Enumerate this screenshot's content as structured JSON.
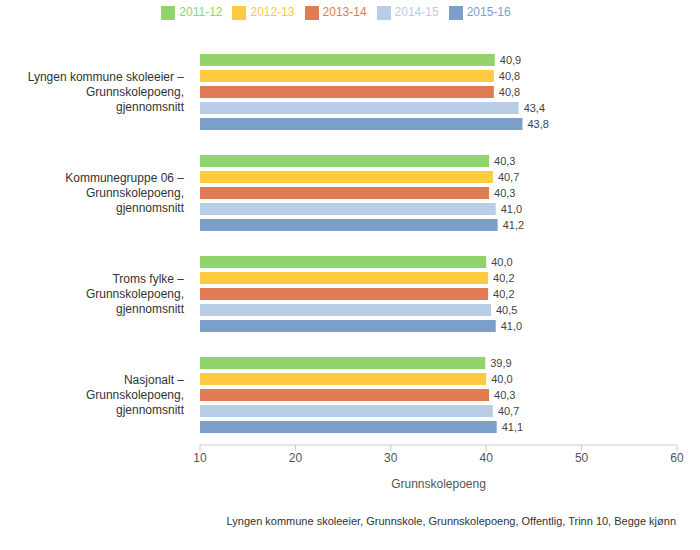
{
  "chart_data": {
    "type": "bar",
    "orientation": "horizontal",
    "data_labels": true,
    "legend": "top",
    "grid": false,
    "x_label": "Grunnskolepoeng",
    "annotations": [
      "Lyngen kommune skoleeier, Grunnskole, Grunnskolepoeng, Offentlig, Trinn 10, Begge kjønn"
    ],
    "categories": [
      "Lyngen kommune skoleeier – Grunnskolepoeng, gjennomsnitt",
      "Kommunegruppe 06 – Grunnskolepoeng, gjennomsnitt",
      "Troms fylke – Grunnskolepoeng, gjennomsnitt",
      "Nasjonalt – Grunnskolepoeng, gjennomsnitt"
    ],
    "xlim": [
      10,
      60
    ],
    "xticks": [
      10,
      20,
      30,
      40,
      50,
      60
    ],
    "series": [
      {
        "name": "2011-12",
        "color": "#92d36e",
        "values": [
          40.9,
          40.3,
          40.0,
          39.9
        ],
        "value_labels": [
          "40,9",
          "40,3",
          "40,0",
          "39,9"
        ]
      },
      {
        "name": "2012-13",
        "color": "#fdca40",
        "values": [
          40.8,
          40.7,
          40.2,
          40.0
        ],
        "value_labels": [
          "40,8",
          "40,7",
          "40,2",
          "40,0"
        ]
      },
      {
        "name": "2013-14",
        "color": "#e07b53",
        "values": [
          40.8,
          40.3,
          40.2,
          40.3
        ],
        "value_labels": [
          "40,8",
          "40,3",
          "40,2",
          "40,3"
        ]
      },
      {
        "name": "2014-15",
        "color": "#b7cee6",
        "values": [
          43.4,
          41.0,
          40.5,
          40.7
        ],
        "value_labels": [
          "43,4",
          "41,0",
          "40,5",
          "40,7"
        ]
      },
      {
        "name": "2015-16",
        "color": "#7c9fc9",
        "values": [
          43.8,
          41.2,
          41.0,
          41.1
        ],
        "value_labels": [
          "43,8",
          "41,2",
          "41,0",
          "41,1"
        ]
      }
    ]
  }
}
